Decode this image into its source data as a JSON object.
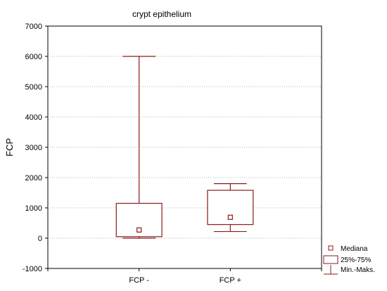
{
  "chart_data": {
    "type": "box",
    "title": "crypt epithelium",
    "xlabel": "",
    "ylabel": "FCP",
    "ylim": [
      -1000,
      7000
    ],
    "yticks": [
      7000,
      6000,
      5000,
      4000,
      3000,
      2000,
      1000,
      0,
      -1000
    ],
    "grid": true,
    "legend_position": "bottom-right",
    "categories": [
      "FCP -",
      "FCP +"
    ],
    "boxes": [
      {
        "category": "FCP -",
        "median": 270,
        "q1": 50,
        "q3": 1150,
        "min": 0,
        "max": 6000
      },
      {
        "category": "FCP +",
        "median": 690,
        "q1": 450,
        "q3": 1580,
        "min": 220,
        "max": 1800
      }
    ],
    "legend": {
      "median": "Mediana",
      "box": "25%-75%",
      "whisker": "Min.-Maks."
    },
    "color": "#8b1a1a"
  }
}
